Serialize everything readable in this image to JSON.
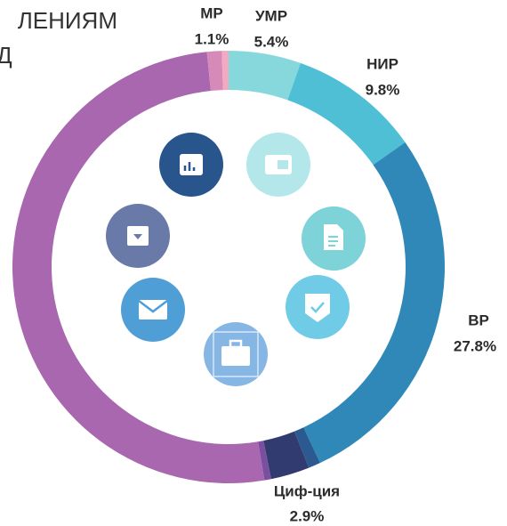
{
  "chart_data": {
    "type": "donut",
    "title_lines": [
      "ЛЕНИЯМ",
      "Д"
    ],
    "categories": [
      "УМР",
      "НИР",
      "ВР",
      null,
      "Циф-ция",
      null,
      null,
      "МР",
      null
    ],
    "values": [
      5.4,
      9.8,
      27.8,
      0.9,
      2.9,
      0.5,
      51,
      1.1,
      0.5
    ],
    "value_labels": [
      "5.4%",
      "9.8%",
      "27.8%",
      null,
      "2.9%",
      null,
      null,
      "1.1%",
      null
    ],
    "colors": [
      "#86d8dc",
      "#4fbfd6",
      "#2f88b8",
      "#2a5a90",
      "#323b70",
      "#7b4fa0",
      "#a867ae",
      "#d68ab8",
      "#f2a9c2"
    ]
  }
}
